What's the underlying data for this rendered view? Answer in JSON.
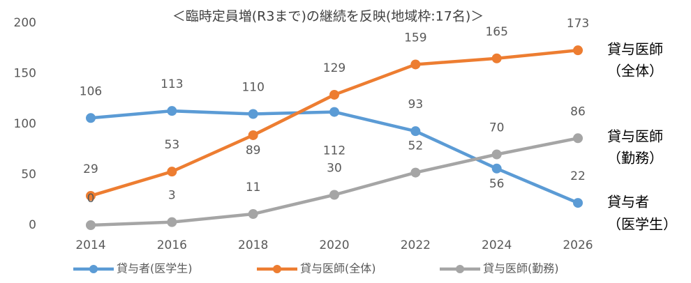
{
  "chart_data": {
    "type": "line",
    "title": "＜臨時定員増(R3まで)の継続を反映(地域枠:17名)＞",
    "categories": [
      "2014",
      "2016",
      "2018",
      "2020",
      "2022",
      "2024",
      "2026"
    ],
    "series": [
      {
        "name": "貸与者(医学生)",
        "color": "#5b9bd5",
        "values": [
          106,
          113,
          110,
          112,
          93,
          56,
          22
        ]
      },
      {
        "name": "貸与医師(全体)",
        "color": "#ed7d31",
        "values": [
          29,
          53,
          89,
          129,
          159,
          165,
          173
        ]
      },
      {
        "name": "貸与医師(勤務)",
        "color": "#a5a5a5",
        "values": [
          0,
          3,
          11,
          30,
          52,
          70,
          86
        ]
      }
    ],
    "ylim": [
      0,
      200
    ],
    "yticks": [
      0,
      50,
      100,
      150,
      200
    ],
    "grid": false,
    "legend": "bottom",
    "annotations": [
      {
        "lines": [
          "貸与医師",
          "（全体）"
        ]
      },
      {
        "lines": [
          "貸与医師",
          "（勤務）"
        ]
      },
      {
        "lines": [
          "貸与者",
          "（医学生）"
        ]
      }
    ]
  }
}
